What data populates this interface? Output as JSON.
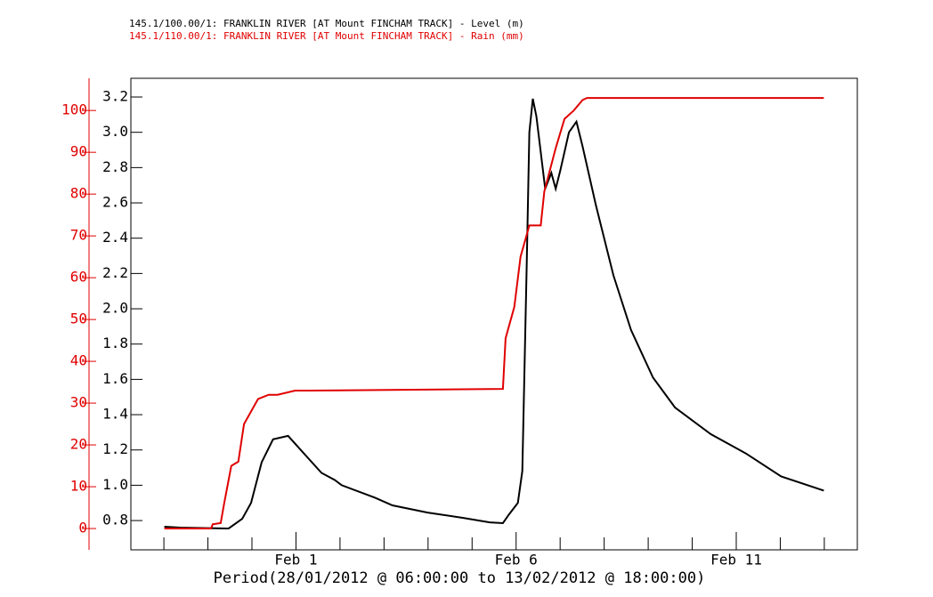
{
  "chart_data": {
    "type": "line",
    "title": "145.1/100.00/1: FRANKLIN RIVER [AT Mount FINCHAM TRACK] - Level (m)",
    "subtitle": "145.1/110.00/1: FRANKLIN RIVER [AT Mount FINCHAM TRACK] - Rain (mm)",
    "x_label": "Period(28/01/2012 @ 06:00:00 to 13/02/2012 @ 18:00:00)",
    "xlim": [
      -3.75,
      12.75
    ],
    "xticks": [
      {
        "value": 0,
        "label": "Feb 1"
      },
      {
        "value": 5,
        "label": "Feb 6"
      },
      {
        "value": 10,
        "label": "Feb 11"
      }
    ],
    "xminorticks": [
      -3,
      -2,
      -1,
      1,
      2,
      3,
      4,
      6,
      7,
      8,
      9,
      11,
      12
    ],
    "ylim": [
      0.634,
      3.306
    ],
    "yticks": [
      0.8,
      {
        "value": 1,
        "label": "1.0"
      },
      1.2,
      1.4,
      1.6,
      1.8,
      {
        "value": 2,
        "label": "2.0"
      },
      2.2,
      2.4,
      2.6,
      2.8,
      {
        "value": 3,
        "label": "3.0"
      },
      3.2
    ],
    "y2lim": [
      -5.1,
      107.7
    ],
    "y2ticks": [
      0,
      10,
      20,
      30,
      40,
      50,
      60,
      70,
      80,
      90,
      100
    ],
    "y2color": "#e00000",
    "series": [
      {
        "color": "#000000",
        "x": [
          -2.99,
          -2.63,
          -1.53,
          -1.22,
          -1.02,
          -0.78,
          -0.52,
          -0.18,
          0.18,
          0.58,
          0.88,
          1.04,
          1.79,
          2.19,
          2.99,
          3.8,
          4.4,
          4.7,
          4.84,
          5.04,
          5.14,
          5.24,
          5.3,
          5.38,
          5.46,
          5.66,
          5.8,
          5.9,
          6.0,
          6.2,
          6.37,
          6.51,
          6.81,
          7.21,
          7.61,
          8.11,
          8.61,
          9.42,
          10.22,
          11.02,
          11.99
        ],
        "values": [
          0.765,
          0.76,
          0.755,
          0.81,
          0.9,
          1.13,
          1.26,
          1.28,
          1.18,
          1.07,
          1.03,
          1.0,
          0.93,
          0.886,
          0.845,
          0.815,
          0.79,
          0.785,
          0.835,
          0.9,
          1.08,
          2.24,
          3.0,
          3.19,
          3.09,
          2.68,
          2.77,
          2.68,
          2.78,
          3.0,
          3.06,
          2.92,
          2.59,
          2.19,
          1.88,
          1.61,
          1.44,
          1.29,
          1.18,
          1.05,
          0.97
        ]
      },
      {
        "color": "#e00000",
        "axis": "y2",
        "x": [
          -2.99,
          -1.93,
          -1.89,
          -1.71,
          -1.63,
          -1.47,
          -1.31,
          -1.18,
          -1.02,
          -0.86,
          -0.62,
          -0.42,
          -0.02,
          0.28,
          4.7,
          4.76,
          4.84,
          4.96,
          5.1,
          5.3,
          5.56,
          5.64,
          5.9,
          6.1,
          6.31,
          6.51,
          6.61,
          11.99
        ],
        "values": [
          0,
          0,
          1,
          1.3,
          6,
          15,
          16,
          25,
          28,
          31,
          32,
          32,
          33,
          33,
          33.4,
          45.5,
          48.5,
          53,
          65,
          72.5,
          72.5,
          80.6,
          91,
          98,
          100,
          102.5,
          103,
          103
        ]
      }
    ]
  }
}
